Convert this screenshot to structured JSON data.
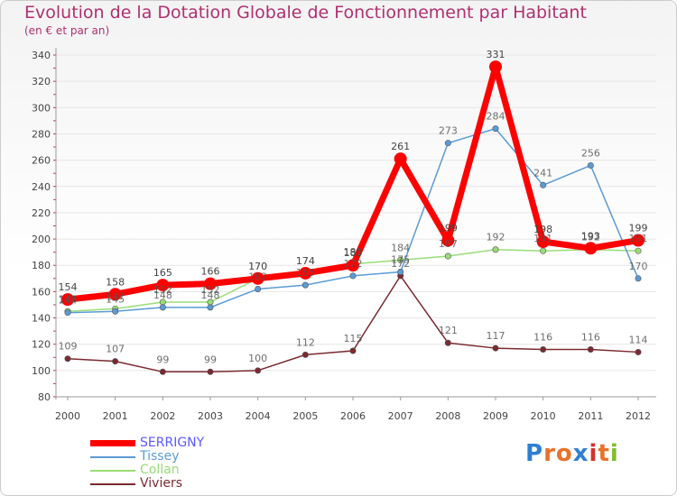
{
  "header": {
    "title": "Evolution de la Dotation Globale de Fonctionnement par Habitant",
    "subtitle": "(en € et par an)"
  },
  "logo": {
    "text": "Proxiti",
    "letters": [
      "P",
      "r",
      "o",
      "x",
      "i",
      "t",
      "i"
    ],
    "colors": [
      "#2f7fd0",
      "#e8722a",
      "#e8722a",
      "#2f7fd0",
      "#d63030",
      "#e8722a",
      "#7fbf2a"
    ]
  },
  "chart_data": {
    "type": "line",
    "title": "Evolution de la Dotation Globale de Fonctionnement par Habitant",
    "subtitle": "(en € et par an)",
    "xlabel": "",
    "ylabel": "",
    "x": [
      "2000",
      "2001",
      "2002",
      "2003",
      "2004",
      "2005",
      "2006",
      "2007",
      "2008",
      "2009",
      "2010",
      "2011",
      "2012"
    ],
    "ylim": [
      80,
      340
    ],
    "yticks": [
      80,
      100,
      120,
      140,
      160,
      180,
      200,
      220,
      240,
      260,
      280,
      300,
      320,
      340
    ],
    "grid": "horizontal",
    "legend_position": "bottom-left",
    "series": [
      {
        "name": "SERRIGNY",
        "color": "#ff0000",
        "labelColor": "#5a5aff",
        "width": 7,
        "marker": 7,
        "values": [
          154,
          158,
          165,
          166,
          170,
          174,
          180,
          261,
          199,
          331,
          198,
          193,
          199
        ],
        "labels": [
          "154",
          "158",
          "165",
          "166",
          "170",
          "174",
          "180",
          "261",
          "199",
          "331",
          "198",
          "193",
          "199"
        ]
      },
      {
        "name": "Tissey",
        "color": "#5b9bd5",
        "labelColor": "#5b9bd5",
        "width": 1.5,
        "marker": 3.2,
        "values": [
          144,
          145,
          148,
          148,
          162,
          165,
          172,
          175,
          273,
          284,
          241,
          256,
          170
        ],
        "labels": [
          "144",
          "145",
          "148",
          "148",
          "162",
          "165",
          "172",
          "175",
          "273",
          "284",
          "241",
          "256",
          "170"
        ]
      },
      {
        "name": "Collan",
        "color": "#99dd77",
        "labelColor": "#99dd77",
        "width": 1.5,
        "marker": 3.2,
        "values": [
          145,
          147,
          152,
          152,
          170,
          174,
          181,
          184,
          187,
          192,
          191,
          192,
          191
        ],
        "labels": [
          "145",
          "147",
          "152",
          "152",
          "170",
          "174",
          "181",
          "184",
          "187",
          "192",
          "191",
          "192",
          "191"
        ]
      },
      {
        "name": "Viviers",
        "color": "#7a2a30",
        "labelColor": "#7a2a30",
        "width": 1.5,
        "marker": 3.2,
        "values": [
          109,
          107,
          99,
          99,
          100,
          112,
          115,
          172,
          121,
          117,
          116,
          116,
          114
        ],
        "labels": [
          "109",
          "107",
          "99",
          "99",
          "100",
          "112",
          "115",
          "172",
          "121",
          "117",
          "116",
          "116",
          "114"
        ]
      }
    ]
  }
}
